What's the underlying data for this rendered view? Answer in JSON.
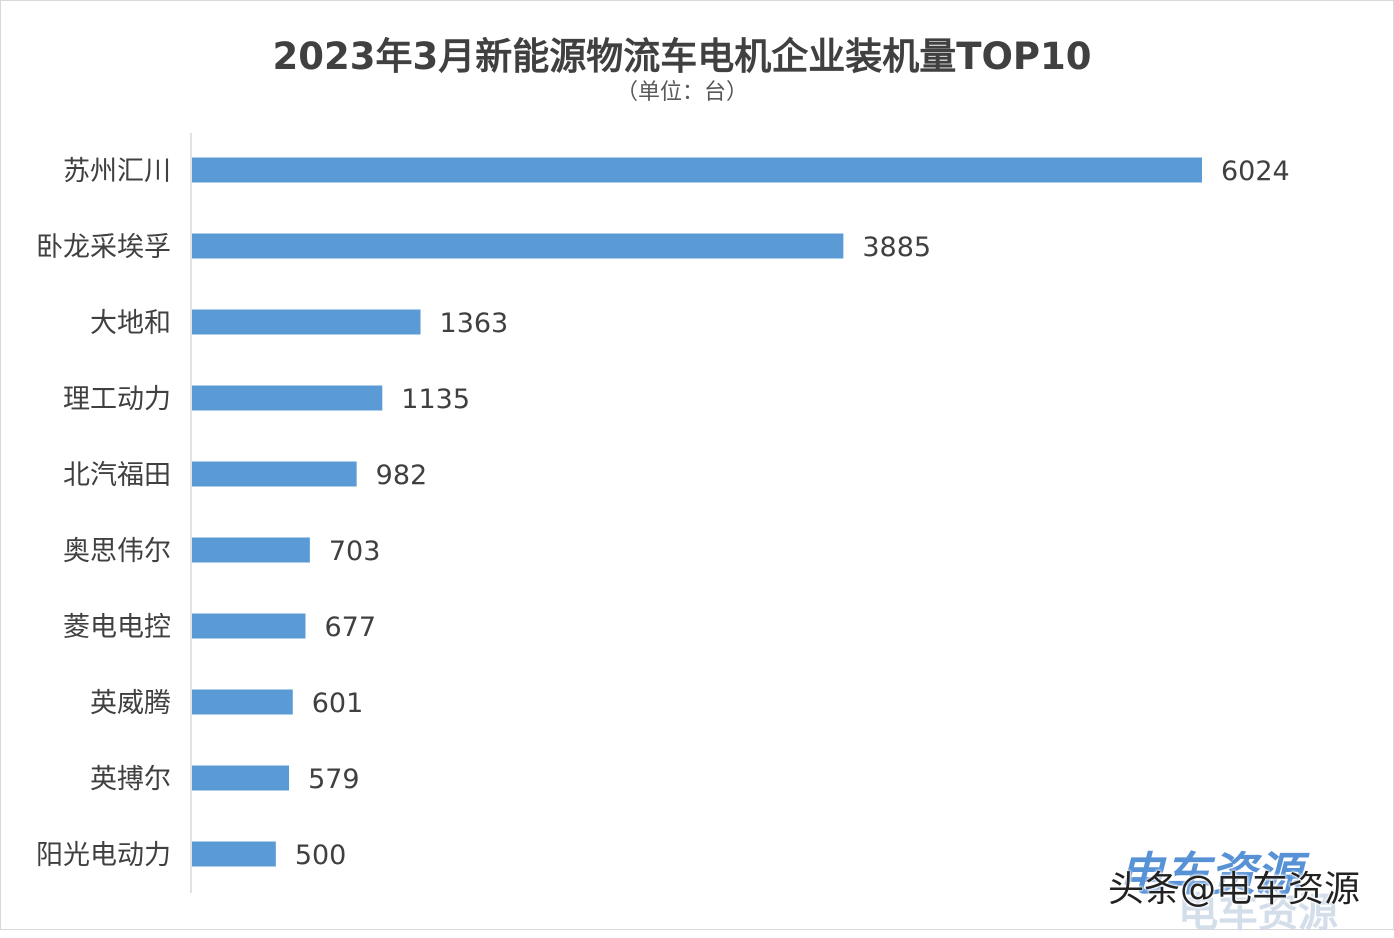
{
  "chart_data": {
    "type": "bar",
    "orientation": "horizontal",
    "title": "2023年3月新能源物流车电机企业装机量TOP10",
    "subtitle": "（单位：台）",
    "categories": [
      "苏州汇川",
      "卧龙采埃孚",
      "大地和",
      "理工动力",
      "北汽福田",
      "奥思伟尔",
      "菱电电控",
      "英威腾",
      "英搏尔",
      "阳光电动力"
    ],
    "values": [
      6024,
      3885,
      1363,
      1135,
      982,
      703,
      677,
      601,
      579,
      500
    ],
    "xlim": [
      0,
      6024
    ],
    "xlabel": "",
    "ylabel": "",
    "grid": false,
    "bar_color": "#5b9bd5",
    "axis_color": "#d9d9d9"
  },
  "watermark": {
    "logo_text": "电车资源",
    "logo_sub": "电车资源",
    "text": "头条@电车资源"
  }
}
